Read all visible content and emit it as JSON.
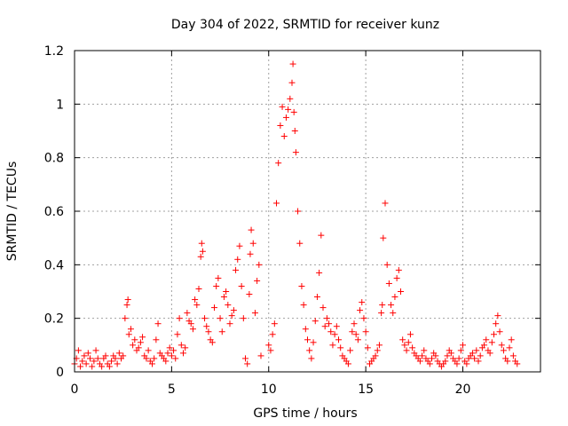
{
  "chart_data": {
    "type": "scatter",
    "title": "Day 304 of 2022, SRMTID for receiver kunz",
    "xlabel": "GPS time / hours",
    "ylabel": "SRMTID / TECUs",
    "xlim": [
      0,
      24
    ],
    "ylim": [
      0,
      1.2
    ],
    "grid": true,
    "marker": "+",
    "color": "#ff0000",
    "x_ticks": [
      "0",
      "5",
      "10",
      "15",
      "20"
    ],
    "y_ticks": [
      "0",
      "0.2",
      "0.4",
      "0.6",
      "0.8",
      "1",
      "1.2"
    ],
    "series": [
      {
        "name": "SRMTID",
        "x": [
          0.0,
          0.1,
          0.2,
          0.3,
          0.4,
          0.5,
          0.6,
          0.7,
          0.8,
          0.9,
          1.0,
          1.1,
          1.2,
          1.3,
          1.4,
          1.5,
          1.6,
          1.7,
          1.8,
          1.9,
          2.0,
          2.1,
          2.2,
          2.3,
          2.4,
          2.5,
          2.6,
          2.7,
          2.75,
          2.8,
          2.9,
          3.0,
          3.1,
          3.2,
          3.3,
          3.4,
          3.5,
          3.6,
          3.7,
          3.8,
          3.9,
          4.0,
          4.1,
          4.2,
          4.3,
          4.4,
          4.5,
          4.6,
          4.7,
          4.8,
          4.9,
          5.0,
          5.1,
          5.2,
          5.3,
          5.4,
          5.5,
          5.6,
          5.7,
          5.8,
          5.9,
          6.0,
          6.1,
          6.2,
          6.3,
          6.4,
          6.5,
          6.55,
          6.6,
          6.7,
          6.8,
          6.9,
          7.0,
          7.1,
          7.2,
          7.3,
          7.4,
          7.5,
          7.6,
          7.7,
          7.8,
          7.9,
          8.0,
          8.1,
          8.2,
          8.3,
          8.4,
          8.5,
          8.6,
          8.7,
          8.8,
          8.9,
          9.0,
          9.05,
          9.1,
          9.2,
          9.3,
          9.4,
          9.5,
          9.6,
          10.0,
          10.1,
          10.2,
          10.3,
          10.4,
          10.5,
          10.6,
          10.7,
          10.8,
          10.9,
          11.0,
          11.1,
          11.2,
          11.25,
          11.3,
          11.35,
          11.4,
          11.5,
          11.6,
          11.7,
          11.8,
          11.9,
          12.0,
          12.1,
          12.2,
          12.3,
          12.4,
          12.5,
          12.6,
          12.7,
          12.8,
          12.9,
          13.0,
          13.1,
          13.2,
          13.3,
          13.4,
          13.5,
          13.6,
          13.7,
          13.8,
          13.9,
          14.0,
          14.1,
          14.2,
          14.3,
          14.4,
          14.5,
          14.6,
          14.7,
          14.8,
          14.9,
          15.0,
          15.1,
          15.2,
          15.3,
          15.4,
          15.5,
          15.6,
          15.7,
          15.8,
          15.85,
          15.9,
          16.0,
          16.1,
          16.2,
          16.3,
          16.4,
          16.5,
          16.6,
          16.7,
          16.8,
          16.9,
          17.0,
          17.1,
          17.2,
          17.3,
          17.4,
          17.5,
          17.6,
          17.7,
          17.8,
          17.9,
          18.0,
          18.1,
          18.2,
          18.3,
          18.4,
          18.5,
          18.6,
          18.7,
          18.8,
          18.9,
          19.0,
          19.1,
          19.2,
          19.3,
          19.4,
          19.5,
          19.6,
          19.7,
          19.8,
          19.9,
          20.0,
          20.1,
          20.2,
          20.3,
          20.4,
          20.5,
          20.6,
          20.7,
          20.8,
          20.9,
          21.0,
          21.1,
          21.2,
          21.3,
          21.4,
          21.5,
          21.6,
          21.7,
          21.8,
          21.9,
          22.0,
          22.1,
          22.2,
          22.3,
          22.4,
          22.5,
          22.6,
          22.7,
          22.8
        ],
        "values": [
          0.03,
          0.05,
          0.08,
          0.02,
          0.04,
          0.06,
          0.03,
          0.07,
          0.05,
          0.02,
          0.04,
          0.08,
          0.05,
          0.03,
          0.02,
          0.05,
          0.06,
          0.03,
          0.02,
          0.04,
          0.06,
          0.05,
          0.03,
          0.07,
          0.05,
          0.06,
          0.2,
          0.25,
          0.27,
          0.14,
          0.16,
          0.1,
          0.12,
          0.08,
          0.09,
          0.11,
          0.13,
          0.06,
          0.05,
          0.08,
          0.04,
          0.03,
          0.05,
          0.12,
          0.18,
          0.07,
          0.06,
          0.05,
          0.04,
          0.07,
          0.09,
          0.06,
          0.08,
          0.05,
          0.14,
          0.2,
          0.1,
          0.07,
          0.09,
          0.22,
          0.19,
          0.18,
          0.16,
          0.27,
          0.25,
          0.31,
          0.43,
          0.48,
          0.45,
          0.2,
          0.17,
          0.15,
          0.12,
          0.11,
          0.24,
          0.32,
          0.35,
          0.2,
          0.15,
          0.28,
          0.3,
          0.25,
          0.18,
          0.21,
          0.23,
          0.38,
          0.42,
          0.47,
          0.32,
          0.2,
          0.05,
          0.03,
          0.29,
          0.44,
          0.53,
          0.48,
          0.22,
          0.34,
          0.4,
          0.06,
          0.1,
          0.08,
          0.14,
          0.18,
          0.63,
          0.78,
          0.92,
          0.99,
          0.88,
          0.95,
          0.98,
          1.02,
          1.08,
          1.15,
          0.97,
          0.9,
          0.82,
          0.6,
          0.48,
          0.32,
          0.25,
          0.16,
          0.12,
          0.08,
          0.05,
          0.11,
          0.19,
          0.28,
          0.37,
          0.51,
          0.24,
          0.17,
          0.2,
          0.18,
          0.15,
          0.1,
          0.14,
          0.17,
          0.12,
          0.09,
          0.06,
          0.05,
          0.04,
          0.03,
          0.08,
          0.15,
          0.18,
          0.14,
          0.12,
          0.23,
          0.26,
          0.2,
          0.15,
          0.09,
          0.03,
          0.04,
          0.05,
          0.06,
          0.08,
          0.1,
          0.22,
          0.25,
          0.5,
          0.63,
          0.4,
          0.33,
          0.25,
          0.22,
          0.28,
          0.35,
          0.38,
          0.3,
          0.12,
          0.1,
          0.08,
          0.11,
          0.14,
          0.09,
          0.07,
          0.06,
          0.05,
          0.04,
          0.06,
          0.08,
          0.05,
          0.04,
          0.03,
          0.05,
          0.07,
          0.06,
          0.04,
          0.03,
          0.02,
          0.03,
          0.04,
          0.06,
          0.08,
          0.07,
          0.05,
          0.04,
          0.03,
          0.05,
          0.08,
          0.1,
          0.04,
          0.03,
          0.05,
          0.06,
          0.07,
          0.05,
          0.08,
          0.04,
          0.06,
          0.09,
          0.1,
          0.12,
          0.08,
          0.07,
          0.11,
          0.14,
          0.18,
          0.21,
          0.15,
          0.1,
          0.08,
          0.05,
          0.04,
          0.09,
          0.12,
          0.06,
          0.04,
          0.03
        ]
      }
    ]
  }
}
